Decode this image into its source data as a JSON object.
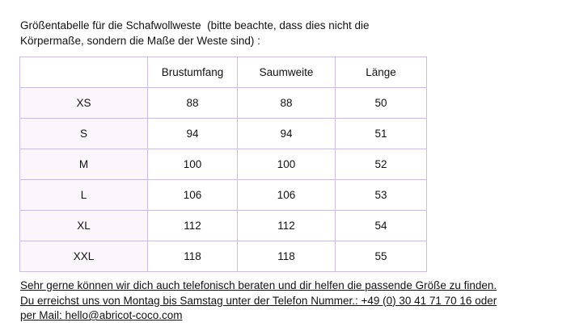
{
  "intro": {
    "lines": [
      "Größentabelle für die Schafwollweste  (bitte beachte, dass dies nicht die",
      "Körpermaße, sondern die Maße der Weste sind) :"
    ]
  },
  "table": {
    "header": [
      "Brustumfang",
      "Saumweite",
      "Länge"
    ],
    "rows": [
      [
        "XS",
        88,
        88,
        50
      ],
      [
        "S",
        94,
        94,
        51
      ],
      [
        "M",
        100,
        100,
        52
      ],
      [
        "L",
        106,
        106,
        53
      ],
      [
        "XL",
        112,
        112,
        54
      ],
      [
        "XXL",
        118,
        118,
        55
      ]
    ]
  },
  "footer": {
    "lines": [
      "Sehr gerne können wir dich auch telefonisch beraten und dir helfen die passende Größe zu finden.",
      "Du erreichst uns von Montag bis Samstag unter der Telefon Nummer.: +49 (0) 30 41 71 70 16 oder",
      "per Mail: hello@abricot-coco.com"
    ]
  }
}
